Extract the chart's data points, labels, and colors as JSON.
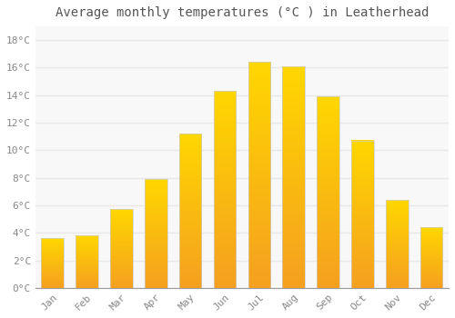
{
  "months": [
    "Jan",
    "Feb",
    "Mar",
    "Apr",
    "May",
    "Jun",
    "Jul",
    "Aug",
    "Sep",
    "Oct",
    "Nov",
    "Dec"
  ],
  "values": [
    3.6,
    3.8,
    5.7,
    7.9,
    11.2,
    14.3,
    16.4,
    16.1,
    13.9,
    10.7,
    6.4,
    4.4
  ],
  "bar_color_bottom": "#F5A020",
  "bar_color_top": "#FFD700",
  "bar_edge_color": "#CCCCCC",
  "title": "Average monthly temperatures (°C ) in Leatherhead",
  "ylim": [
    0,
    19
  ],
  "yticks": [
    0,
    2,
    4,
    6,
    8,
    10,
    12,
    14,
    16,
    18
  ],
  "ytick_labels": [
    "0°C",
    "2°C",
    "4°C",
    "6°C",
    "8°C",
    "10°C",
    "12°C",
    "14°C",
    "16°C",
    "18°C"
  ],
  "background_color": "#FFFFFF",
  "plot_bg_color": "#F8F8F8",
  "grid_color": "#E8E8E8",
  "title_fontsize": 10,
  "tick_fontsize": 8,
  "bar_width": 0.65,
  "gradient_steps": 200
}
